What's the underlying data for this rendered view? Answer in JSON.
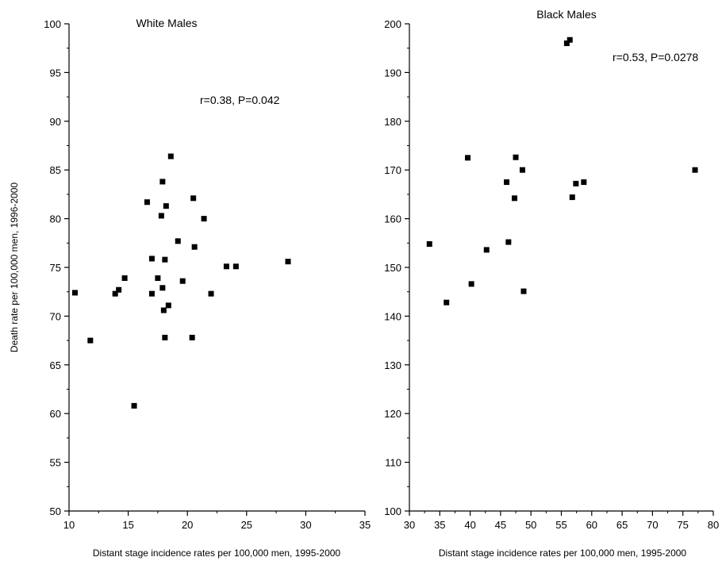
{
  "figure": {
    "ylabel": "Death rate per 100,000 men, 1996-2000"
  },
  "chart_data": [
    {
      "type": "scatter",
      "title": "White Males",
      "annotation": "r=0.38, P=0.042",
      "xlabel": "Distant stage incidence rates per 100,000 men, 1995-2000",
      "ylabel": "Death rate per 100,000 men, 1996-2000",
      "xlim": [
        10,
        35
      ],
      "ylim": [
        50,
        100
      ],
      "xticks": [
        10,
        15,
        20,
        25,
        30,
        35
      ],
      "yticks": [
        50,
        55,
        60,
        65,
        70,
        75,
        80,
        85,
        90,
        95,
        100
      ],
      "grid": false,
      "marker_color": "#000000",
      "points": [
        {
          "x": 10.5,
          "y": 72.4
        },
        {
          "x": 11.8,
          "y": 67.5
        },
        {
          "x": 13.9,
          "y": 72.3
        },
        {
          "x": 14.2,
          "y": 72.7
        },
        {
          "x": 14.7,
          "y": 73.9
        },
        {
          "x": 15.5,
          "y": 60.8
        },
        {
          "x": 16.6,
          "y": 81.7
        },
        {
          "x": 17.0,
          "y": 75.9
        },
        {
          "x": 17.0,
          "y": 72.3
        },
        {
          "x": 17.5,
          "y": 73.9
        },
        {
          "x": 17.8,
          "y": 80.3
        },
        {
          "x": 17.9,
          "y": 83.8
        },
        {
          "x": 17.9,
          "y": 72.9
        },
        {
          "x": 18.0,
          "y": 70.6
        },
        {
          "x": 18.1,
          "y": 75.8
        },
        {
          "x": 18.1,
          "y": 67.8
        },
        {
          "x": 18.2,
          "y": 81.3
        },
        {
          "x": 18.4,
          "y": 71.1
        },
        {
          "x": 18.6,
          "y": 86.4
        },
        {
          "x": 19.2,
          "y": 77.7
        },
        {
          "x": 19.6,
          "y": 73.6
        },
        {
          "x": 20.4,
          "y": 67.8
        },
        {
          "x": 20.5,
          "y": 82.1
        },
        {
          "x": 20.6,
          "y": 77.1
        },
        {
          "x": 21.4,
          "y": 80.0
        },
        {
          "x": 22.0,
          "y": 72.3
        },
        {
          "x": 23.3,
          "y": 75.1
        },
        {
          "x": 24.1,
          "y": 75.1
        },
        {
          "x": 28.5,
          "y": 75.6
        }
      ]
    },
    {
      "type": "scatter",
      "title": "Black Males",
      "annotation": "r=0.53, P=0.0278",
      "xlabel": "Distant stage incidence rates per 100,000 men, 1995-2000",
      "ylabel": "",
      "xlim": [
        30,
        80
      ],
      "ylim": [
        100,
        200
      ],
      "xticks": [
        30,
        35,
        40,
        45,
        50,
        55,
        60,
        65,
        70,
        75,
        80
      ],
      "yticks": [
        100,
        110,
        120,
        130,
        140,
        150,
        160,
        170,
        180,
        190,
        200
      ],
      "grid": false,
      "marker_color": "#000000",
      "points": [
        {
          "x": 33.3,
          "y": 154.8
        },
        {
          "x": 36.1,
          "y": 142.8
        },
        {
          "x": 39.6,
          "y": 172.5
        },
        {
          "x": 40.2,
          "y": 146.6
        },
        {
          "x": 42.7,
          "y": 153.6
        },
        {
          "x": 46.0,
          "y": 167.5
        },
        {
          "x": 46.3,
          "y": 155.2
        },
        {
          "x": 47.3,
          "y": 164.2
        },
        {
          "x": 47.5,
          "y": 172.6
        },
        {
          "x": 48.6,
          "y": 170.0
        },
        {
          "x": 48.8,
          "y": 145.1
        },
        {
          "x": 55.9,
          "y": 196.0
        },
        {
          "x": 56.4,
          "y": 196.7
        },
        {
          "x": 56.8,
          "y": 164.4
        },
        {
          "x": 57.4,
          "y": 167.2
        },
        {
          "x": 58.7,
          "y": 167.5
        },
        {
          "x": 77.0,
          "y": 170.0
        }
      ]
    }
  ]
}
